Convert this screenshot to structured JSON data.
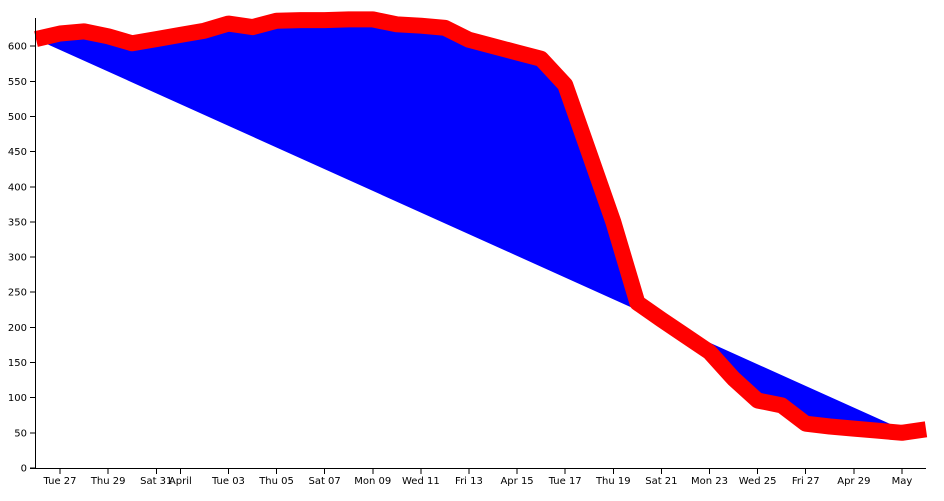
{
  "chart_data": {
    "type": "area",
    "title": "",
    "xlabel": "",
    "ylabel": "",
    "ylim": [
      0,
      640
    ],
    "grid": false,
    "x_tick_labels": [
      "Tue 27",
      "Thu 29",
      "Sat 31",
      "April",
      "Tue 03",
      "Thu 05",
      "Sat 07",
      "Mon 09",
      "Wed 11",
      "Fri 13",
      "Apr 15",
      "Tue 17",
      "Thu 19",
      "Sat 21",
      "Mon 23",
      "Wed 25",
      "Fri 27",
      "Apr 29",
      "May"
    ],
    "y_ticks": [
      0,
      50,
      100,
      150,
      200,
      250,
      300,
      350,
      400,
      450,
      500,
      550,
      600
    ],
    "colors": {
      "line": "#ff0000",
      "area": "#0000ff",
      "axis": "#000000"
    },
    "series": [
      {
        "values": [
          {
            "x": "Mar 26",
            "y": 610
          },
          {
            "x": "Mar 27",
            "y": 618
          },
          {
            "x": "Mar 28",
            "y": 621
          },
          {
            "x": "Mar 29",
            "y": 614
          },
          {
            "x": "Mar 30",
            "y": 604
          },
          {
            "x": "Mar 31",
            "y": 610
          },
          {
            "x": "Apr 01",
            "y": 616
          },
          {
            "x": "Apr 02",
            "y": 622
          },
          {
            "x": "Apr 03",
            "y": 632
          },
          {
            "x": "Apr 04",
            "y": 627
          },
          {
            "x": "Apr 05",
            "y": 636
          },
          {
            "x": "Apr 06",
            "y": 637
          },
          {
            "x": "Apr 07",
            "y": 637
          },
          {
            "x": "Apr 08",
            "y": 638
          },
          {
            "x": "Apr 09",
            "y": 638
          },
          {
            "x": "Apr 10",
            "y": 631
          },
          {
            "x": "Apr 11",
            "y": 629
          },
          {
            "x": "Apr 12",
            "y": 626
          },
          {
            "x": "Apr 13",
            "y": 609
          },
          {
            "x": "Apr 14",
            "y": 600
          },
          {
            "x": "Apr 15",
            "y": 591
          },
          {
            "x": "Apr 16",
            "y": 582
          },
          {
            "x": "Apr 17",
            "y": 545
          },
          {
            "x": "Apr 18",
            "y": 448
          },
          {
            "x": "Apr 19",
            "y": 350
          },
          {
            "x": "Apr 20",
            "y": 235
          },
          {
            "x": "Apr 21",
            "y": 211
          },
          {
            "x": "Apr 22",
            "y": 188
          },
          {
            "x": "Apr 23",
            "y": 165
          },
          {
            "x": "Apr 24",
            "y": 127
          },
          {
            "x": "Apr 25",
            "y": 96
          },
          {
            "x": "Apr 26",
            "y": 89
          },
          {
            "x": "Apr 27",
            "y": 63
          },
          {
            "x": "Apr 28",
            "y": 59
          },
          {
            "x": "Apr 29",
            "y": 56
          },
          {
            "x": "Apr 30",
            "y": 53
          },
          {
            "x": "May 01",
            "y": 50
          },
          {
            "x": "May 02",
            "y": 55
          }
        ]
      }
    ],
    "baseline": [
      {
        "x": "Mar 26",
        "y": 610
      },
      {
        "x": "May 01",
        "y": 55
      }
    ]
  }
}
